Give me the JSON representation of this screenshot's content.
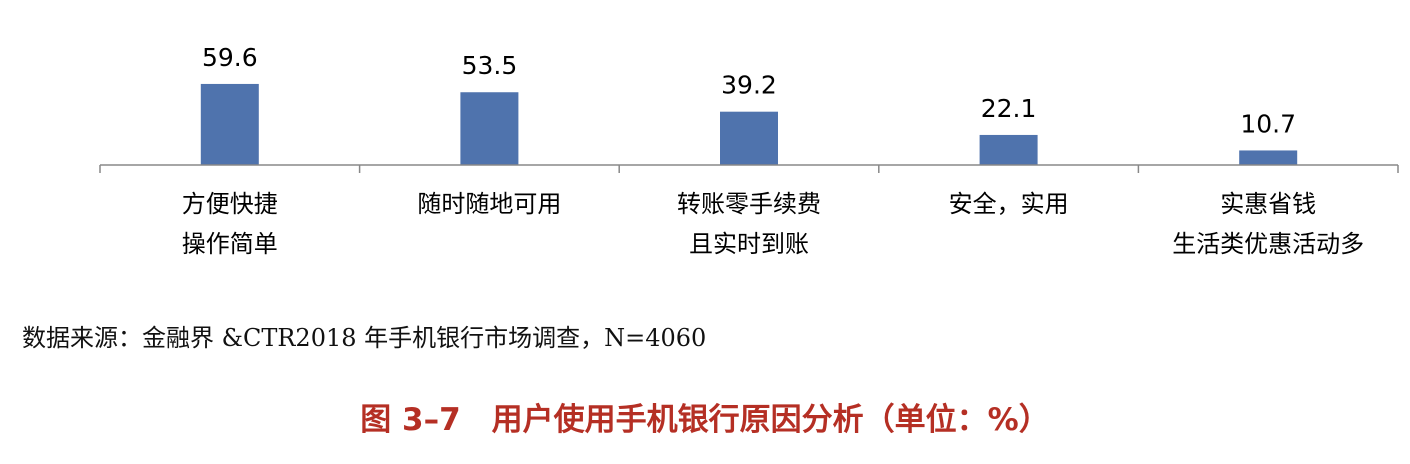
{
  "chart_data": {
    "type": "bar",
    "categories": [
      [
        "方便快捷",
        "操作简单"
      ],
      [
        "随时随地可用"
      ],
      [
        "转账零手续费",
        "且实时到账"
      ],
      [
        "安全，实用"
      ],
      [
        "实惠省钱",
        "生活类优惠活动多"
      ]
    ],
    "values": [
      59.6,
      53.5,
      39.2,
      22.1,
      10.7
    ],
    "value_labels": [
      "59.6",
      "53.5",
      "39.2",
      "22.1",
      "10.7"
    ],
    "ylim": [
      0,
      65
    ],
    "grid": false,
    "bar_color": "#4f73ad"
  },
  "source_note": "数据来源：金融界 &CTR2018 年手机银行市场调查，N=4060",
  "caption": "图 3–7　用户使用手机银行原因分析（单位：%）"
}
